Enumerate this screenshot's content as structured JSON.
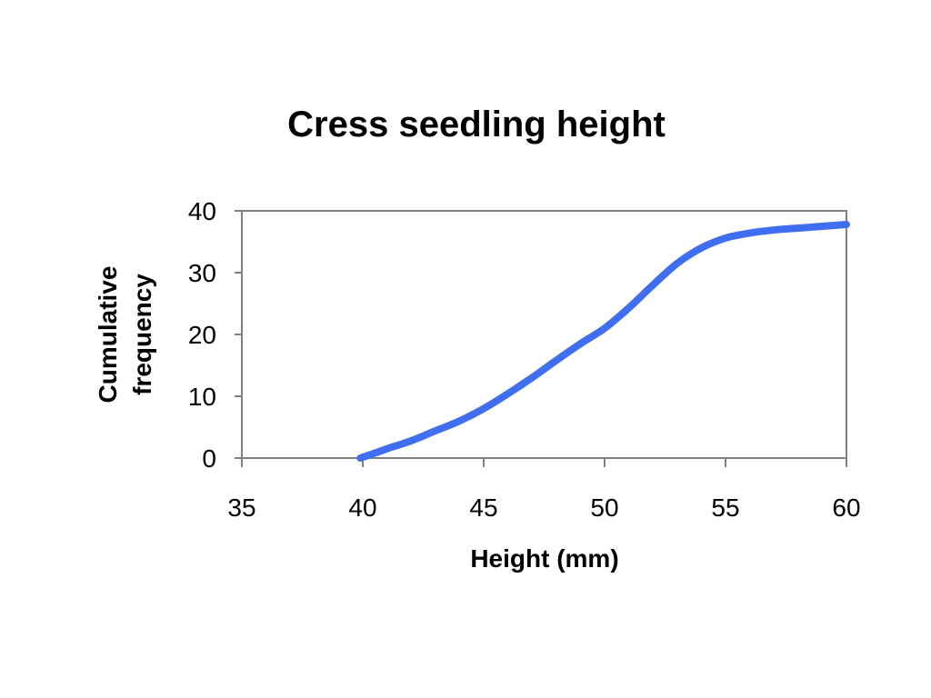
{
  "chart_data": {
    "type": "line",
    "title": "Cress seedling height",
    "xlabel": "Height (mm)",
    "ylabel": [
      "Cumulative",
      "frequency"
    ],
    "xlim": [
      35,
      60
    ],
    "ylim": [
      0,
      40
    ],
    "x_ticks": [
      "35",
      "40",
      "45",
      "50",
      "55",
      "60"
    ],
    "y_ticks": [
      "0",
      "10",
      "20",
      "30",
      "40"
    ],
    "grid": false,
    "legend": "none",
    "series": [
      {
        "color": "#3F6EF0",
        "x": [
          39.9,
          40.5,
          41.0,
          42.0,
          43.0,
          44.0,
          45.0,
          46.0,
          47.0,
          48.0,
          49.0,
          50.0,
          51.0,
          52.0,
          53.0,
          54.0,
          55.0,
          56.0,
          57.0,
          58.0,
          59.0,
          60.0
        ],
        "y": [
          0,
          0.8,
          1.5,
          2.8,
          4.4,
          6.0,
          8.0,
          10.4,
          13.0,
          15.8,
          18.5,
          21.0,
          24.3,
          28.0,
          31.5,
          34.0,
          35.6,
          36.4,
          36.9,
          37.2,
          37.5,
          37.8
        ]
      }
    ]
  }
}
